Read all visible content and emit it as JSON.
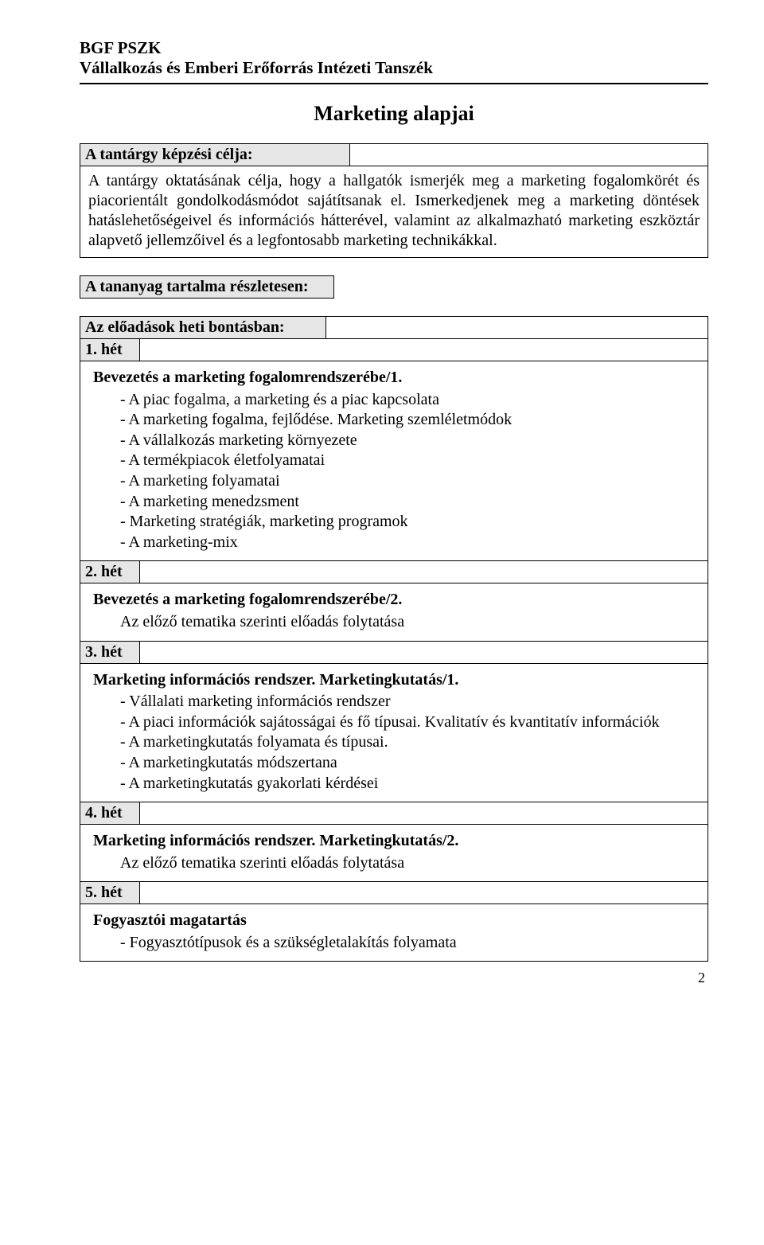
{
  "header": {
    "line1": "BGF PSZK",
    "line2": "Vállalkozás és Emberi Erőforrás Intézeti Tanszék"
  },
  "title": "Marketing alapjai",
  "section_goal": {
    "label": "A tantárgy képzési célja:",
    "text": "A tantárgy oktatásának célja, hogy a hallgatók ismerjék meg a marketing fogalomkörét és piacorientált gondolkodásmódot sajátítsanak el. Ismerkedjenek meg a marketing döntések hatáslehetőségeivel és információs hátterével, valamint az alkalmazható marketing eszköztár alapvető jellemzőivel és a legfontosabb marketing technikákkal."
  },
  "section_content_label": "A tananyag tartalma részletesen:",
  "section_weekly_label": "Az előadások heti bontásban:",
  "weeks": [
    {
      "label": "1. hét",
      "title": "Bevezetés a marketing fogalomrendszerébe/1.",
      "items": [
        "A piac fogalma, a marketing és a piac kapcsolata",
        "A marketing fogalma, fejlődése. Marketing szemléletmódok",
        "A vállalkozás marketing környezete",
        "A termékpiacok életfolyamatai",
        "A marketing folyamatai",
        "A marketing menedzsment",
        "Marketing stratégiák, marketing programok",
        "A marketing-mix"
      ]
    },
    {
      "label": "2. hét",
      "title": "Bevezetés a marketing fogalomrendszerébe/2.",
      "note": "Az előző tematika szerinti előadás folytatása"
    },
    {
      "label": "3. hét",
      "title": "Marketing információs rendszer. Marketingkutatás/1.",
      "items": [
        "Vállalati marketing információs rendszer",
        "A piaci információk sajátosságai és fő típusai. Kvalitatív és kvantitatív információk",
        "A marketingkutatás folyamata és típusai.",
        "A marketingkutatás módszertana",
        "A marketingkutatás gyakorlati kérdései"
      ]
    },
    {
      "label": "4. hét",
      "title": "Marketing információs rendszer. Marketingkutatás/2.",
      "note": "Az előző tematika szerinti előadás folytatása"
    },
    {
      "label": "5. hét",
      "title": "Fogyasztói magatartás",
      "items": [
        "Fogyasztótípusok és a szükségletalakítás folyamata"
      ]
    }
  ],
  "page_number": "2"
}
